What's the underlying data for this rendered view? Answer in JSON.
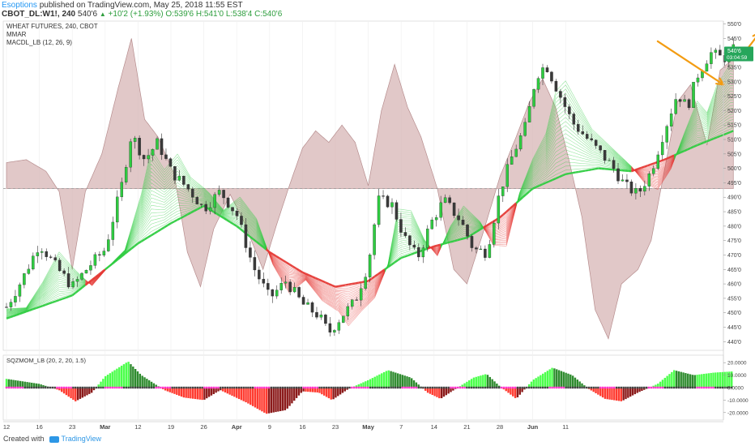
{
  "header": {
    "author": "Esoptions",
    "published": "published on TradingView.com, May 25, 2018 11:55 EST",
    "symbol": "CBOT_DL:W1!, 240",
    "last": "540'6",
    "change": "+10'2 (+1.93%)",
    "open": "O:539'6",
    "high": "H:541'0",
    "low": "L:538'4",
    "close": "C:540'6"
  },
  "legend": {
    "title": "WHEAT FUTURES, 240, CBOT",
    "ind1": "MMAR",
    "ind2": "MACDL_LB (12, 26, 9)"
  },
  "price_tag": {
    "value": "540'6",
    "time": "03:04:59"
  },
  "footer": {
    "created": "Created with",
    "brand": "TradingView"
  },
  "colors": {
    "bull": "#2ecc40",
    "bear": "#e53935",
    "macd_fill": "#d7b5b6",
    "arrow": "#f39c12",
    "squeeze_dot": "#ff33cc"
  },
  "chart_data": [
    {
      "type": "candlestick",
      "title": "WHEAT FUTURES, 240, CBOT",
      "x_ticks": [
        "12",
        "16",
        "23",
        "Mar",
        "12",
        "19",
        "26",
        "Apr",
        "9",
        "16",
        "23",
        "May",
        "7",
        "14",
        "21",
        "28",
        "Jun",
        "11"
      ],
      "y_ticks": [
        "550'0",
        "545'0",
        "540'0",
        "535'0",
        "530'0",
        "525'0",
        "520'0",
        "515'0",
        "510'0",
        "505'0",
        "500'0",
        "495'0",
        "490'0",
        "485'0",
        "480'0",
        "475'0",
        "470'0",
        "465'0",
        "460'0",
        "455'0",
        "450'0",
        "445'0",
        "440'0"
      ],
      "ylim": [
        437,
        551
      ],
      "price_path": [
        {
          "x": 0,
          "y": 452
        },
        {
          "x": 0.5,
          "y": 462
        },
        {
          "x": 1,
          "y": 474
        },
        {
          "x": 1.5,
          "y": 466
        },
        {
          "x": 2,
          "y": 459
        },
        {
          "x": 2.5,
          "y": 466
        },
        {
          "x": 3,
          "y": 472
        },
        {
          "x": 3.5,
          "y": 494
        },
        {
          "x": 3.8,
          "y": 512
        },
        {
          "x": 4.2,
          "y": 503
        },
        {
          "x": 4.6,
          "y": 509
        },
        {
          "x": 5.0,
          "y": 499
        },
        {
          "x": 5.6,
          "y": 492
        },
        {
          "x": 6.0,
          "y": 486
        },
        {
          "x": 6.5,
          "y": 492
        },
        {
          "x": 7.0,
          "y": 484
        },
        {
          "x": 7.5,
          "y": 466
        },
        {
          "x": 8.0,
          "y": 455
        },
        {
          "x": 8.5,
          "y": 461
        },
        {
          "x": 9.0,
          "y": 453
        },
        {
          "x": 9.5,
          "y": 449
        },
        {
          "x": 9.8,
          "y": 443
        },
        {
          "x": 10.2,
          "y": 449
        },
        {
          "x": 10.6,
          "y": 454
        },
        {
          "x": 11.0,
          "y": 467
        },
        {
          "x": 11.3,
          "y": 489
        },
        {
          "x": 11.7,
          "y": 488
        },
        {
          "x": 12.1,
          "y": 476
        },
        {
          "x": 12.5,
          "y": 469
        },
        {
          "x": 12.9,
          "y": 481
        },
        {
          "x": 13.3,
          "y": 489
        },
        {
          "x": 13.8,
          "y": 482
        },
        {
          "x": 14.2,
          "y": 472
        },
        {
          "x": 14.6,
          "y": 471
        },
        {
          "x": 15.0,
          "y": 492
        },
        {
          "x": 15.4,
          "y": 505
        },
        {
          "x": 15.8,
          "y": 515
        },
        {
          "x": 16.1,
          "y": 532
        },
        {
          "x": 16.4,
          "y": 536
        },
        {
          "x": 16.8,
          "y": 526
        },
        {
          "x": 17.2,
          "y": 516
        },
        {
          "x": 17.6,
          "y": 511
        },
        {
          "x": 18.0,
          "y": 506
        },
        {
          "x": 18.4,
          "y": 501
        },
        {
          "x": 18.8,
          "y": 494
        },
        {
          "x": 19.2,
          "y": 491
        },
        {
          "x": 19.6,
          "y": 499
        },
        {
          "x": 20.0,
          "y": 513
        },
        {
          "x": 20.4,
          "y": 526
        },
        {
          "x": 20.7,
          "y": 521
        },
        {
          "x": 21.0,
          "y": 532
        },
        {
          "x": 21.4,
          "y": 540
        },
        {
          "x": 21.8,
          "y": 538
        },
        {
          "x": 22.1,
          "y": 541
        }
      ],
      "ribbon_green_ma": [
        {
          "x": 0,
          "y": 448
        },
        {
          "x": 2,
          "y": 456
        },
        {
          "x": 4,
          "y": 474
        },
        {
          "x": 5,
          "y": 481
        },
        {
          "x": 6,
          "y": 487
        },
        {
          "x": 7,
          "y": 480
        },
        {
          "x": 8,
          "y": 471
        },
        {
          "x": 9,
          "y": 464
        },
        {
          "x": 10,
          "y": 459
        },
        {
          "x": 11,
          "y": 461
        },
        {
          "x": 12,
          "y": 469
        },
        {
          "x": 13,
          "y": 473
        },
        {
          "x": 14,
          "y": 476
        },
        {
          "x": 15,
          "y": 483
        },
        {
          "x": 16,
          "y": 493
        },
        {
          "x": 17,
          "y": 498
        },
        {
          "x": 18,
          "y": 500
        },
        {
          "x": 19,
          "y": 499
        },
        {
          "x": 20,
          "y": 503
        },
        {
          "x": 21,
          "y": 508
        },
        {
          "x": 22.1,
          "y": 513
        }
      ],
      "macd_overlay": [
        {
          "x": 0,
          "y": 502
        },
        {
          "x": 0.6,
          "y": 503
        },
        {
          "x": 1.2,
          "y": 499
        },
        {
          "x": 1.6,
          "y": 492
        },
        {
          "x": 2.0,
          "y": 465
        },
        {
          "x": 2.4,
          "y": 492
        },
        {
          "x": 2.9,
          "y": 505
        },
        {
          "x": 3.4,
          "y": 528
        },
        {
          "x": 3.8,
          "y": 545
        },
        {
          "x": 4.2,
          "y": 517
        },
        {
          "x": 4.6,
          "y": 511
        },
        {
          "x": 5.1,
          "y": 498
        },
        {
          "x": 5.5,
          "y": 471
        },
        {
          "x": 5.9,
          "y": 459
        },
        {
          "x": 6.3,
          "y": 479
        },
        {
          "x": 6.8,
          "y": 491
        },
        {
          "x": 7.2,
          "y": 482
        },
        {
          "x": 7.8,
          "y": 465
        },
        {
          "x": 8.2,
          "y": 480
        },
        {
          "x": 8.6,
          "y": 494
        },
        {
          "x": 9.0,
          "y": 507
        },
        {
          "x": 9.4,
          "y": 513
        },
        {
          "x": 9.8,
          "y": 509
        },
        {
          "x": 10.2,
          "y": 515
        },
        {
          "x": 10.6,
          "y": 509
        },
        {
          "x": 11.0,
          "y": 494
        },
        {
          "x": 11.4,
          "y": 520
        },
        {
          "x": 11.8,
          "y": 536
        },
        {
          "x": 12.2,
          "y": 521
        },
        {
          "x": 12.6,
          "y": 511
        },
        {
          "x": 13.1,
          "y": 493
        },
        {
          "x": 13.6,
          "y": 465
        },
        {
          "x": 14.0,
          "y": 460
        },
        {
          "x": 14.5,
          "y": 478
        },
        {
          "x": 15.0,
          "y": 497
        },
        {
          "x": 15.5,
          "y": 511
        },
        {
          "x": 15.9,
          "y": 523
        },
        {
          "x": 16.3,
          "y": 531
        },
        {
          "x": 16.7,
          "y": 521
        },
        {
          "x": 17.1,
          "y": 503
        },
        {
          "x": 17.5,
          "y": 483
        },
        {
          "x": 17.9,
          "y": 451
        },
        {
          "x": 18.3,
          "y": 441
        },
        {
          "x": 18.7,
          "y": 460
        },
        {
          "x": 19.2,
          "y": 465
        },
        {
          "x": 19.6,
          "y": 475
        },
        {
          "x": 20.0,
          "y": 499
        },
        {
          "x": 20.4,
          "y": 523
        },
        {
          "x": 20.8,
          "y": 529
        },
        {
          "x": 21.3,
          "y": 508
        },
        {
          "x": 21.7,
          "y": 534
        },
        {
          "x": 22.1,
          "y": 538
        }
      ],
      "macd_zero_level": 493,
      "last_price": 540.75,
      "annotations": [
        {
          "type": "arrow",
          "points": [
            [
              19.8,
              544
            ],
            [
              21.8,
              529
            ]
          ]
        },
        {
          "type": "arrow",
          "points": [
            [
              22.3,
              538
            ],
            [
              22.9,
              547
            ]
          ]
        },
        {
          "type": "arrow",
          "points": [
            [
              22.9,
              547
            ],
            [
              24.4,
              514
            ]
          ]
        }
      ]
    },
    {
      "type": "bar",
      "title": "SQZMOM_LB (20, 2, 20, 1.5)",
      "y_ticks": [
        "20.0000",
        "10.0000",
        "0.0000",
        "-10.0000",
        "-20.0000"
      ],
      "ylim": [
        -26,
        26
      ],
      "momentum_knots": [
        {
          "x": 0,
          "y": 7
        },
        {
          "x": 1,
          "y": 3
        },
        {
          "x": 1.6,
          "y": -2
        },
        {
          "x": 2.1,
          "y": -11
        },
        {
          "x": 2.6,
          "y": -4
        },
        {
          "x": 3.0,
          "y": 9
        },
        {
          "x": 3.7,
          "y": 21
        },
        {
          "x": 4.1,
          "y": 10
        },
        {
          "x": 4.8,
          "y": -2
        },
        {
          "x": 5.4,
          "y": -8
        },
        {
          "x": 6.0,
          "y": -10
        },
        {
          "x": 6.5,
          "y": -2
        },
        {
          "x": 7.3,
          "y": -12
        },
        {
          "x": 7.9,
          "y": -21
        },
        {
          "x": 8.5,
          "y": -18
        },
        {
          "x": 9.0,
          "y": -3
        },
        {
          "x": 9.5,
          "y": -4
        },
        {
          "x": 9.9,
          "y": -10
        },
        {
          "x": 10.4,
          "y": -1
        },
        {
          "x": 11.0,
          "y": 6
        },
        {
          "x": 11.6,
          "y": 14
        },
        {
          "x": 12.3,
          "y": 8
        },
        {
          "x": 12.8,
          "y": -4
        },
        {
          "x": 13.2,
          "y": -9
        },
        {
          "x": 13.6,
          "y": -2
        },
        {
          "x": 14.2,
          "y": 8
        },
        {
          "x": 14.6,
          "y": 11
        },
        {
          "x": 15.0,
          "y": 1
        },
        {
          "x": 15.5,
          "y": -9
        },
        {
          "x": 16.0,
          "y": 6
        },
        {
          "x": 16.6,
          "y": 16
        },
        {
          "x": 17.2,
          "y": 10
        },
        {
          "x": 17.7,
          "y": -1
        },
        {
          "x": 18.2,
          "y": -9
        },
        {
          "x": 18.7,
          "y": -11
        },
        {
          "x": 19.2,
          "y": -4
        },
        {
          "x": 19.8,
          "y": 3
        },
        {
          "x": 20.3,
          "y": 14
        },
        {
          "x": 20.9,
          "y": 10
        },
        {
          "x": 21.5,
          "y": 12
        },
        {
          "x": 22.1,
          "y": 13
        }
      ]
    }
  ]
}
